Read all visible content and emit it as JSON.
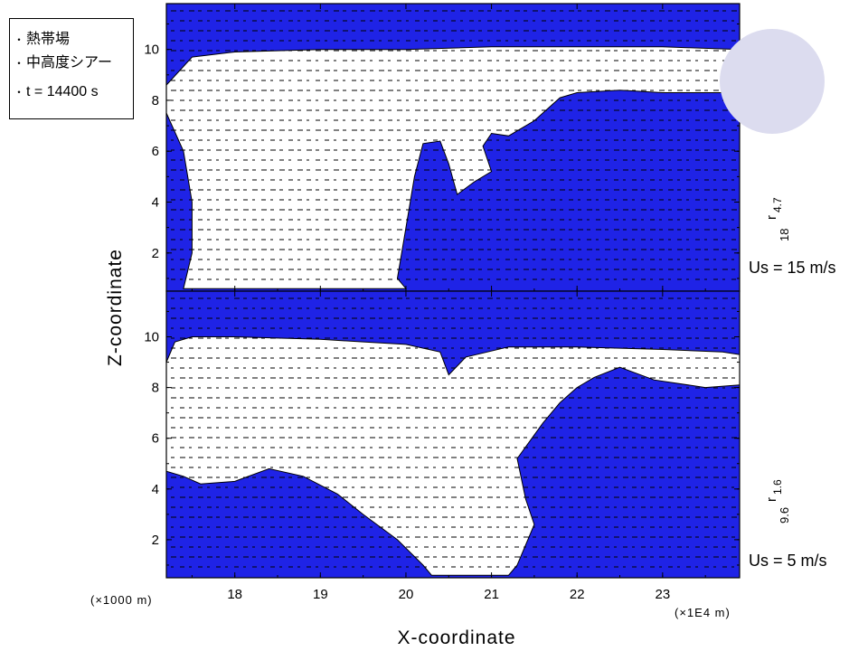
{
  "legend": {
    "items": [
      "熱帯場",
      "中高度シアー",
      "t = 14400 s"
    ]
  },
  "chart_data": {
    "type": "contour",
    "xlabel": "X-coordinate",
    "ylabel": "Z-coordinate",
    "x_unit_left": "(×1000 m)",
    "x_unit_right": "(×1E4 m)",
    "xlim": [
      17.2,
      23.9
    ],
    "x_ticks": [
      18,
      19,
      20,
      21,
      22,
      23
    ],
    "ylim": [
      0.5,
      11.8
    ],
    "y_ticks": [
      2,
      4,
      6,
      8,
      10
    ],
    "fill_color": "#1f23e6",
    "panels": [
      {
        "name": "top",
        "contour_label": "r",
        "contour_subscript": "4.7",
        "contour_index": "18",
        "shear_label": "Us = 15 m/s",
        "white_region": [
          [
            17.4,
            0.6
          ],
          [
            17.5,
            2
          ],
          [
            17.5,
            4
          ],
          [
            17.4,
            6
          ],
          [
            17.2,
            7.5
          ],
          [
            17.2,
            8.6
          ],
          [
            17.5,
            9.7
          ],
          [
            18,
            9.9
          ],
          [
            19,
            10
          ],
          [
            20,
            10
          ],
          [
            21,
            10.1
          ],
          [
            22,
            10.1
          ],
          [
            23,
            10.1
          ],
          [
            23.9,
            10
          ],
          [
            23.9,
            8.3
          ],
          [
            23.5,
            8.3
          ],
          [
            23,
            8.3
          ],
          [
            22.5,
            8.4
          ],
          [
            22,
            8.3
          ],
          [
            21.8,
            8.1
          ],
          [
            21.5,
            7.2
          ],
          [
            21.2,
            6.6
          ],
          [
            21,
            6.7
          ],
          [
            20.9,
            6.2
          ],
          [
            21,
            5.2
          ],
          [
            20.8,
            4.8
          ],
          [
            20.6,
            4.3
          ],
          [
            20.5,
            5.5
          ],
          [
            20.4,
            6.4
          ],
          [
            20.2,
            6.3
          ],
          [
            20.1,
            5
          ],
          [
            20,
            3
          ],
          [
            19.9,
            1
          ],
          [
            20,
            0.6
          ]
        ]
      },
      {
        "name": "bottom",
        "contour_label": "r",
        "contour_subscript": "1.6",
        "contour_index": "9.6",
        "shear_label": "Us = 5 m/s",
        "white_region": [
          [
            17.2,
            9
          ],
          [
            17.3,
            9.8
          ],
          [
            17.5,
            10
          ],
          [
            18,
            10
          ],
          [
            19,
            9.9
          ],
          [
            19.5,
            9.8
          ],
          [
            20,
            9.7
          ],
          [
            20.4,
            9.4
          ],
          [
            20.5,
            8.5
          ],
          [
            20.7,
            9.2
          ],
          [
            21.2,
            9.6
          ],
          [
            21.5,
            9.6
          ],
          [
            22,
            9.6
          ],
          [
            23,
            9.5
          ],
          [
            23.7,
            9.4
          ],
          [
            23.9,
            9.3
          ],
          [
            23.9,
            8.1
          ],
          [
            23.5,
            8
          ],
          [
            22.9,
            8.3
          ],
          [
            22.5,
            8.8
          ],
          [
            22.2,
            8.4
          ],
          [
            22,
            8
          ],
          [
            21.8,
            7.4
          ],
          [
            21.6,
            6.6
          ],
          [
            21.3,
            5.2
          ],
          [
            21.4,
            3.6
          ],
          [
            21.5,
            2.6
          ],
          [
            21.3,
            1
          ],
          [
            21.2,
            0.6
          ],
          [
            20.3,
            0.6
          ],
          [
            20.2,
            1
          ],
          [
            19.9,
            2
          ],
          [
            19.5,
            3
          ],
          [
            19.2,
            3.8
          ],
          [
            18.8,
            4.5
          ],
          [
            18.4,
            4.8
          ],
          [
            18,
            4.3
          ],
          [
            17.6,
            4.2
          ],
          [
            17.4,
            4.5
          ],
          [
            17.2,
            4.7
          ]
        ]
      }
    ]
  }
}
